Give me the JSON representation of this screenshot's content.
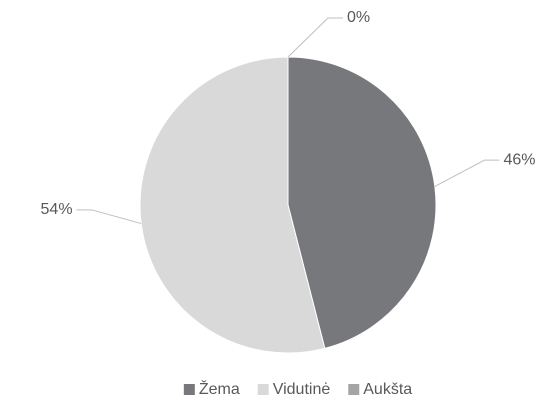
{
  "chart_data": {
    "type": "pie",
    "categories": [
      "Žema",
      "Vidutinė",
      "Aukšta"
    ],
    "values": [
      46,
      54,
      0
    ],
    "value_labels": [
      "46%",
      "54%",
      "0%"
    ],
    "colors": [
      "#77787b",
      "#d9d9da",
      "#a5a5a7"
    ],
    "legend": "bottom"
  }
}
